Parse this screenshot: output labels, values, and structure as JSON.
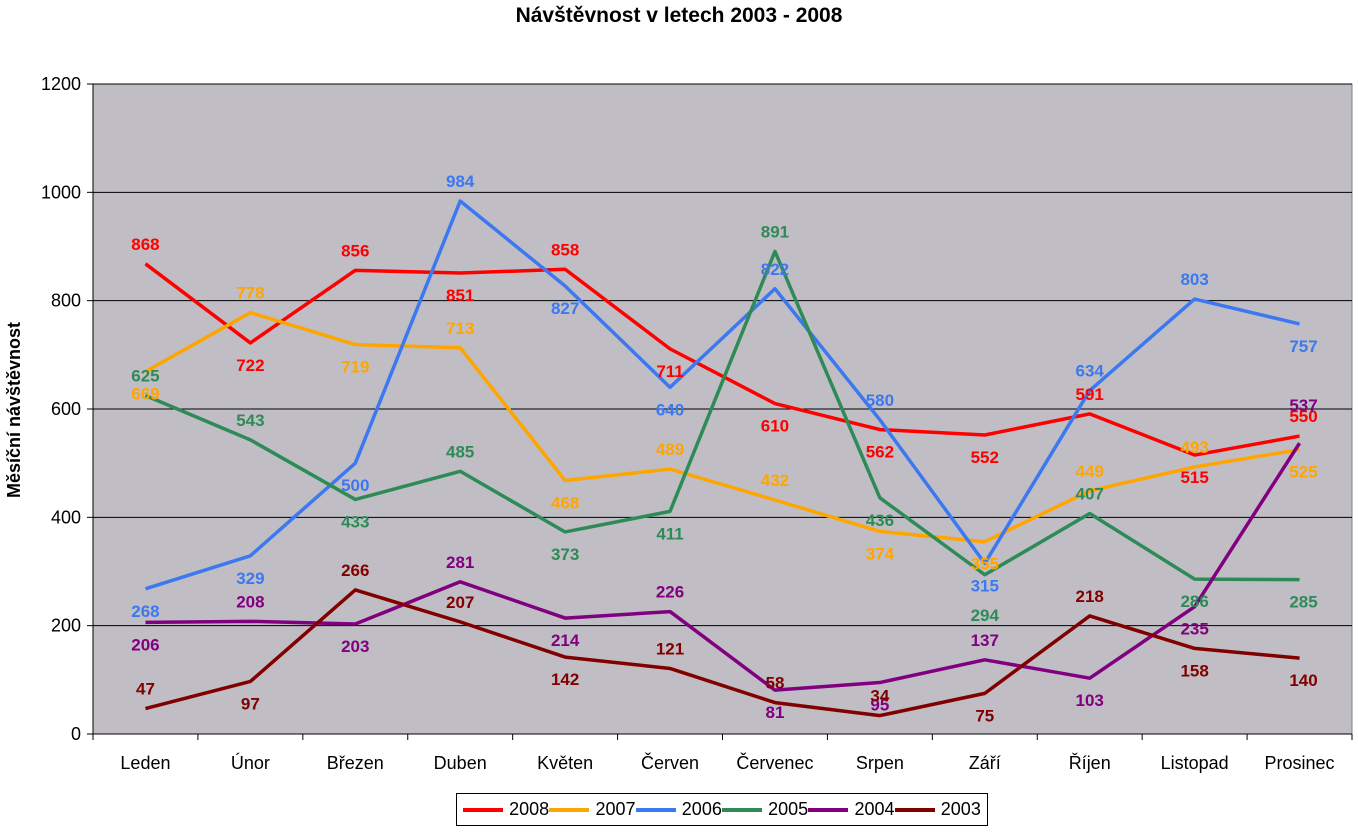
{
  "chart_data": {
    "type": "line",
    "title": "Návštěvnost v letech 2003 - 2008",
    "xlabel": "",
    "ylabel": "Měsíční návštěvnost",
    "ylim": [
      0,
      1200
    ],
    "yticks": [
      0,
      200,
      400,
      600,
      800,
      1000,
      1200
    ],
    "grid": true,
    "legend_position": "bottom",
    "categories": [
      "Leden",
      "Únor",
      "Březen",
      "Duben",
      "Květen",
      "Červen",
      "Červenec",
      "Srpen",
      "Září",
      "Říjen",
      "Listopad",
      "Prosinec"
    ],
    "series": [
      {
        "name": "2008",
        "color": "#ff0000",
        "values": [
          868,
          722,
          856,
          851,
          858,
          711,
          610,
          562,
          552,
          591,
          515,
          550
        ]
      },
      {
        "name": "2007",
        "color": "#ffa500",
        "values": [
          669,
          778,
          719,
          713,
          468,
          489,
          432,
          374,
          355,
          449,
          493,
          525
        ]
      },
      {
        "name": "2006",
        "color": "#3c78f0",
        "values": [
          268,
          329,
          500,
          984,
          827,
          640,
          822,
          580,
          315,
          634,
          803,
          757
        ]
      },
      {
        "name": "2005",
        "color": "#2e8b57",
        "values": [
          625,
          543,
          433,
          485,
          373,
          411,
          891,
          436,
          294,
          407,
          286,
          285
        ]
      },
      {
        "name": "2004",
        "color": "#800080",
        "values": [
          206,
          208,
          203,
          281,
          214,
          226,
          81,
          95,
          137,
          103,
          235,
          537
        ]
      },
      {
        "name": "2003",
        "color": "#800000",
        "values": [
          47,
          97,
          266,
          207,
          142,
          121,
          58,
          34,
          75,
          218,
          158,
          140
        ]
      }
    ]
  }
}
